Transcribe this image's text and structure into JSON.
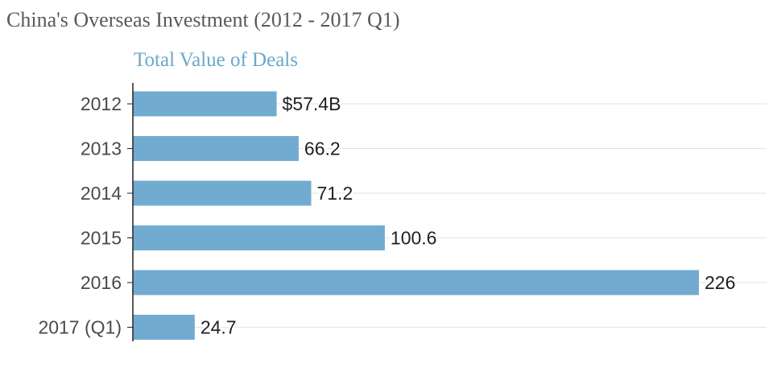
{
  "page": {
    "title": "China's Overseas Investment (2012 - 2017 Q1)"
  },
  "chart_data": {
    "type": "bar",
    "orientation": "horizontal",
    "subtitle": "Total Value of Deals",
    "categories": [
      "2012",
      "2013",
      "2014",
      "2015",
      "2016",
      "2017 (Q1)"
    ],
    "values": [
      57.4,
      66.2,
      71.2,
      100.6,
      226,
      24.7
    ],
    "data_labels": [
      "$57.4B",
      "66.2",
      "71.2",
      "100.6",
      "226",
      "24.7"
    ],
    "xlim": [
      0,
      253
    ],
    "grid": true,
    "legend": "none",
    "colors": {
      "bar": "#72abd0",
      "subtitle": "#6aa8cb",
      "grid": "#e2e2e2",
      "axis": "#222222"
    }
  }
}
